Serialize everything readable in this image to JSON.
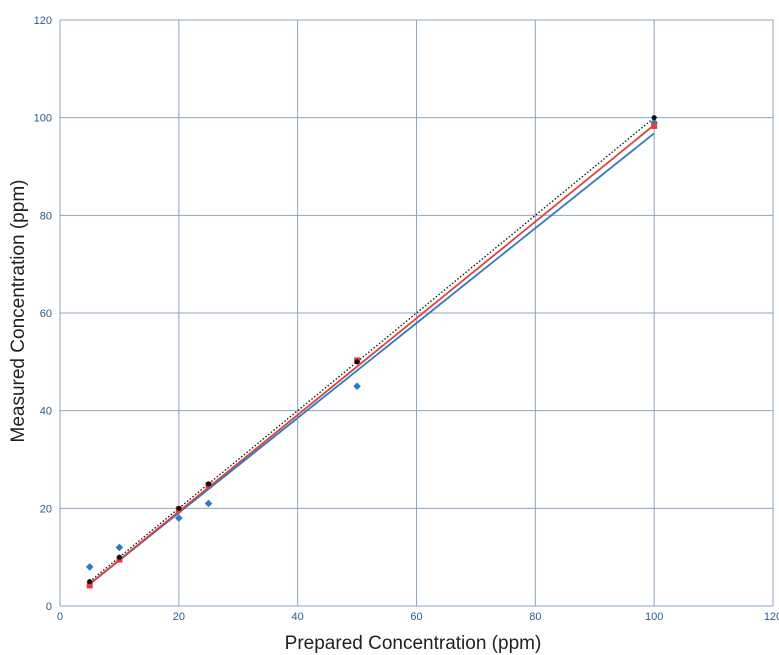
{
  "chart_data": {
    "type": "scatter",
    "title": "",
    "xlabel": "Prepared Concentration (ppm)",
    "ylabel": "Measured Concentration (ppm)",
    "xlim": [
      0,
      120
    ],
    "ylim": [
      0,
      120
    ],
    "xticks": [
      0,
      20,
      40,
      60,
      80,
      100,
      120
    ],
    "yticks": [
      0,
      20,
      40,
      60,
      80,
      100,
      120
    ],
    "grid": true,
    "legend": "none",
    "colors": {
      "grid": "#8ea4bf",
      "tick_label": "#2b5b8c",
      "blue": "#2e7cc0",
      "red": "#e0403a",
      "black": "#111111"
    },
    "series": [
      {
        "color_key": "blue",
        "marker": "diamond",
        "points": [
          [
            5,
            8
          ],
          [
            10,
            12
          ],
          [
            20,
            18
          ],
          [
            25,
            21
          ],
          [
            50,
            45
          ],
          [
            100,
            99
          ]
        ],
        "trendline": {
          "x": [
            5,
            100
          ],
          "y": [
            4.5,
            96.8
          ],
          "style": "solid"
        }
      },
      {
        "color_key": "red",
        "marker": "square",
        "points": [
          [
            5,
            4.2
          ],
          [
            10,
            9.5
          ],
          [
            20,
            19.8
          ],
          [
            25,
            24.8
          ],
          [
            50,
            50.3
          ],
          [
            100,
            98.3
          ]
        ],
        "trendline": {
          "x": [
            5,
            100
          ],
          "y": [
            4.5,
            98.5
          ],
          "style": "solid"
        }
      },
      {
        "color_key": "black",
        "marker": "circle",
        "points": [
          [
            5,
            5
          ],
          [
            10,
            10
          ],
          [
            20,
            20
          ],
          [
            25,
            25
          ],
          [
            50,
            50
          ],
          [
            100,
            100
          ]
        ],
        "trendline": {
          "x": [
            5,
            100
          ],
          "y": [
            5,
            100
          ],
          "style": "dotted"
        }
      }
    ]
  }
}
